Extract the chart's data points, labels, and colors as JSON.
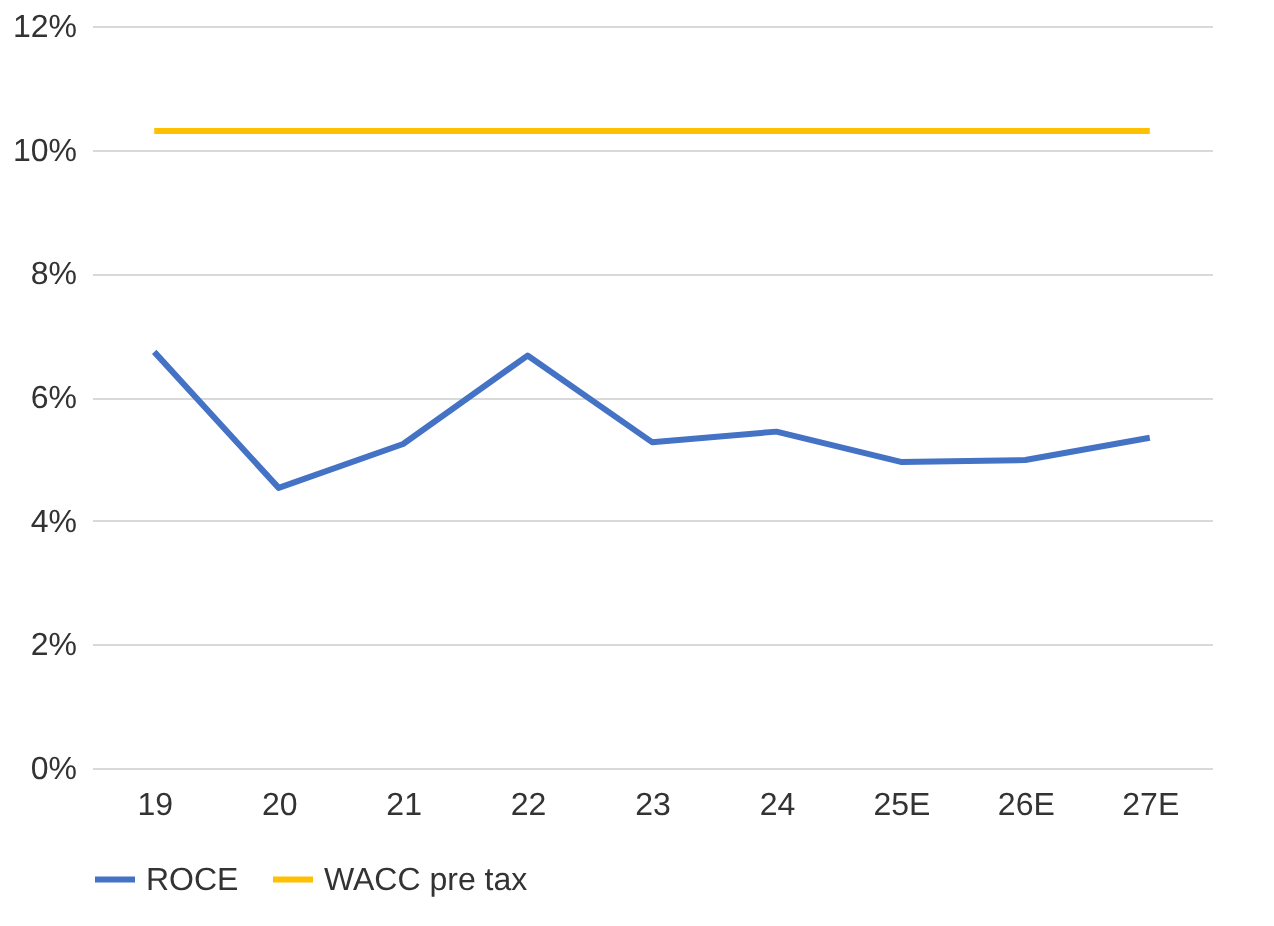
{
  "chart_data": {
    "type": "line",
    "categories": [
      "19",
      "20",
      "21",
      "22",
      "23",
      "24",
      "25E",
      "26E",
      "27E"
    ],
    "series": [
      {
        "name": "ROCE",
        "color": "#4472c4",
        "values": [
          6.73,
          4.53,
          5.24,
          6.67,
          5.27,
          5.44,
          4.95,
          4.98,
          5.34
        ]
      },
      {
        "name": "WACC pre tax",
        "color": "#ffc000",
        "values": [
          10.3,
          10.3,
          10.3,
          10.3,
          10.3,
          10.3,
          10.3,
          10.3,
          10.3
        ]
      }
    ],
    "ylim": [
      0,
      12
    ],
    "yticks": [
      {
        "value": 0,
        "label": "0%"
      },
      {
        "value": 2,
        "label": "2%"
      },
      {
        "value": 4,
        "label": "4%"
      },
      {
        "value": 6,
        "label": "6%"
      },
      {
        "value": 8,
        "label": "8%"
      },
      {
        "value": 10,
        "label": "10%"
      },
      {
        "value": 12,
        "label": "12%"
      }
    ],
    "grid": "y",
    "legend": "bottom",
    "marker": "none",
    "line_style": "solid"
  }
}
